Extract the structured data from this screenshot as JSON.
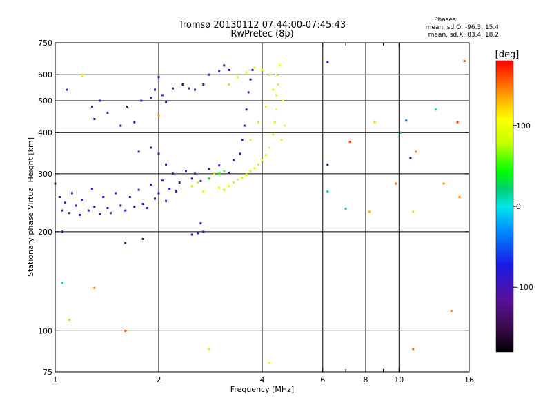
{
  "chart_data": {
    "type": "scatter",
    "title": "Tromsø 20130112 07:44:00-07:45:43",
    "subtitle": "RwPretec (8p)",
    "xlabel": "Frequency [MHz]",
    "ylabel": "Stationary phase Virtual Height [km]",
    "x_scale": "log",
    "y_scale": "log",
    "xlim": [
      1,
      16
    ],
    "ylim": [
      75,
      750
    ],
    "x_ticks": [
      1,
      2,
      4,
      6,
      8,
      10,
      16
    ],
    "x_tick_labels": [
      "1",
      "2",
      "4",
      "6",
      "8",
      "10",
      "16"
    ],
    "x_minor_ticks": [
      7,
      9
    ],
    "x_gridlines": [
      2,
      4,
      6,
      8,
      10
    ],
    "y_ticks": [
      75,
      100,
      200,
      300,
      400,
      500,
      600,
      750
    ],
    "y_tick_labels": [
      "75",
      "100",
      "200",
      "300",
      "400",
      "500",
      "600",
      "750"
    ],
    "y_gridlines": [
      100,
      200,
      300,
      400,
      500,
      600
    ],
    "grid": true,
    "stats": {
      "heading": "Phases",
      "line_o": "mean, sd,O: -96.3, 15.4",
      "line_x": "mean, sd,X: 83.4, 18.2"
    },
    "colorbar": {
      "label": "[deg]",
      "range": [
        -180,
        180
      ],
      "ticks": [
        100,
        0,
        -100
      ],
      "tick_labels": [
        "100",
        "0",
        "-100"
      ],
      "colormap": "rainbow (black-purple-blue-cyan-green-yellow-red)"
    },
    "series": [
      {
        "mode": "O",
        "phase_mean": -96.3,
        "phase_sd": 15.4,
        "points": [
          [
            1.0,
            280,
            -110
          ],
          [
            1.03,
            255,
            -100
          ],
          [
            1.05,
            232,
            -105
          ],
          [
            1.07,
            245,
            -95
          ],
          [
            1.1,
            228,
            -110
          ],
          [
            1.12,
            262,
            -100
          ],
          [
            1.15,
            240,
            -105
          ],
          [
            1.18,
            225,
            -95
          ],
          [
            1.2,
            250,
            -108
          ],
          [
            1.25,
            232,
            -102
          ],
          [
            1.28,
            270,
            -100
          ],
          [
            1.3,
            238,
            -110
          ],
          [
            1.35,
            226,
            -98
          ],
          [
            1.38,
            255,
            -104
          ],
          [
            1.42,
            236,
            -100
          ],
          [
            1.45,
            228,
            -112
          ],
          [
            1.5,
            262,
            -96
          ],
          [
            1.55,
            240,
            -105
          ],
          [
            1.6,
            232,
            -100
          ],
          [
            1.65,
            255,
            -108
          ],
          [
            1.7,
            238,
            -98
          ],
          [
            1.75,
            268,
            -106
          ],
          [
            1.8,
            243,
            -100
          ],
          [
            1.85,
            236,
            -110
          ],
          [
            1.9,
            278,
            -104
          ],
          [
            1.95,
            252,
            -100
          ],
          [
            2.0,
            262,
            -95
          ],
          [
            2.05,
            286,
            -105
          ],
          [
            2.1,
            248,
            -110
          ],
          [
            2.15,
            270,
            -100
          ],
          [
            2.2,
            300,
            -104
          ],
          [
            2.25,
            265,
            -108
          ],
          [
            2.3,
            282,
            -98
          ],
          [
            2.4,
            305,
            -104
          ],
          [
            2.5,
            290,
            -100
          ],
          [
            1.08,
            540,
            -104
          ],
          [
            1.28,
            480,
            -100
          ],
          [
            1.3,
            440,
            -110
          ],
          [
            1.35,
            500,
            -98
          ],
          [
            1.42,
            460,
            -104
          ],
          [
            1.55,
            420,
            -100
          ],
          [
            1.62,
            480,
            -104
          ],
          [
            1.7,
            430,
            -108
          ],
          [
            1.78,
            500,
            -100
          ],
          [
            1.9,
            510,
            -104
          ],
          [
            1.95,
            540,
            -98
          ],
          [
            2.0,
            590,
            -102
          ],
          [
            2.05,
            520,
            -100
          ],
          [
            2.1,
            495,
            -108
          ],
          [
            2.2,
            545,
            -100
          ],
          [
            1.75,
            350,
            -100
          ],
          [
            1.9,
            360,
            -104
          ],
          [
            2.0,
            345,
            -108
          ],
          [
            2.1,
            320,
            -100
          ],
          [
            2.35,
            560,
            -100
          ],
          [
            2.45,
            545,
            -104
          ],
          [
            2.55,
            540,
            -98
          ],
          [
            2.7,
            560,
            -100
          ],
          [
            2.8,
            600,
            -104
          ],
          [
            3.0,
            615,
            -100
          ],
          [
            3.1,
            640,
            -104
          ],
          [
            3.2,
            620,
            -100
          ],
          [
            2.55,
            300,
            -100
          ],
          [
            2.65,
            285,
            -104
          ],
          [
            2.8,
            310,
            -108
          ],
          [
            2.9,
            300,
            -98
          ],
          [
            3.0,
            318,
            -102
          ],
          [
            3.2,
            302,
            -100
          ],
          [
            3.3,
            330,
            -104
          ],
          [
            3.45,
            345,
            -110
          ],
          [
            3.5,
            380,
            -104
          ],
          [
            3.55,
            420,
            -100
          ],
          [
            3.6,
            470,
            -98
          ],
          [
            3.65,
            530,
            -104
          ],
          [
            3.7,
            580,
            -100
          ],
          [
            3.75,
            620,
            -106
          ],
          [
            2.5,
            196,
            -100
          ],
          [
            2.6,
            198,
            -104
          ],
          [
            2.7,
            200,
            -110
          ],
          [
            2.65,
            212,
            -100
          ],
          [
            1.05,
            200,
            -90
          ],
          [
            1.6,
            185,
            -120
          ]
        ]
      },
      {
        "mode": "X",
        "phase_mean": 83.4,
        "phase_sd": 18.2,
        "points": [
          [
            2.5,
            275,
            75
          ],
          [
            2.6,
            282,
            80
          ],
          [
            2.7,
            265,
            85
          ],
          [
            2.8,
            290,
            70
          ],
          [
            2.9,
            300,
            80
          ],
          [
            3.0,
            272,
            88
          ],
          [
            3.1,
            268,
            80
          ],
          [
            3.2,
            275,
            85
          ],
          [
            3.3,
            282,
            78
          ],
          [
            3.4,
            288,
            90
          ],
          [
            3.5,
            292,
            80
          ],
          [
            3.6,
            298,
            85
          ],
          [
            3.7,
            305,
            82
          ],
          [
            3.8,
            312,
            88
          ],
          [
            3.9,
            320,
            80
          ],
          [
            4.0,
            330,
            85
          ],
          [
            4.1,
            342,
            80
          ],
          [
            4.2,
            360,
            90
          ],
          [
            4.3,
            395,
            85
          ],
          [
            4.35,
            430,
            80
          ],
          [
            4.4,
            470,
            90
          ],
          [
            4.4,
            520,
            88
          ],
          [
            4.45,
            560,
            85
          ],
          [
            4.4,
            600,
            80
          ],
          [
            4.5,
            640,
            90
          ],
          [
            3.2,
            560,
            75
          ],
          [
            3.4,
            590,
            80
          ],
          [
            3.6,
            610,
            88
          ],
          [
            3.8,
            630,
            85
          ],
          [
            4.0,
            620,
            90
          ],
          [
            4.2,
            600,
            80
          ],
          [
            4.3,
            540,
            85
          ],
          [
            4.1,
            480,
            90
          ],
          [
            3.9,
            430,
            78
          ],
          [
            3.7,
            380,
            84
          ],
          [
            4.6,
            500,
            95
          ],
          [
            4.65,
            420,
            100
          ],
          [
            4.55,
            380,
            88
          ],
          [
            3.0,
            300,
            50
          ],
          [
            2.8,
            290,
            40
          ]
        ]
      },
      {
        "mode": "noise",
        "points": [
          [
            1.05,
            140,
            20
          ],
          [
            1.1,
            108,
            120
          ],
          [
            1.2,
            595,
            110
          ],
          [
            1.3,
            135,
            140
          ],
          [
            1.6,
            100,
            160
          ],
          [
            1.8,
            190,
            -140
          ],
          [
            2.0,
            450,
            140
          ],
          [
            2.8,
            88,
            110
          ],
          [
            3.1,
            305,
            60
          ],
          [
            4.2,
            80,
            95
          ],
          [
            6.2,
            655,
            -80
          ],
          [
            6.2,
            320,
            -130
          ],
          [
            6.2,
            265,
            10
          ],
          [
            7.0,
            235,
            30
          ],
          [
            7.2,
            375,
            160
          ],
          [
            8.2,
            230,
            130
          ],
          [
            8.5,
            430,
            120
          ],
          [
            10.1,
            400,
            25
          ],
          [
            9.8,
            280,
            150
          ],
          [
            10.5,
            435,
            -60
          ],
          [
            10.8,
            335,
            -130
          ],
          [
            11.2,
            350,
            140
          ],
          [
            11.0,
            230,
            110
          ],
          [
            11.0,
            88,
            150
          ],
          [
            12.8,
            470,
            30
          ],
          [
            13.5,
            280,
            140
          ],
          [
            14.2,
            115,
            150
          ],
          [
            14.8,
            430,
            160
          ],
          [
            15.0,
            255,
            145
          ],
          [
            15.5,
            660,
            160
          ]
        ]
      }
    ]
  }
}
